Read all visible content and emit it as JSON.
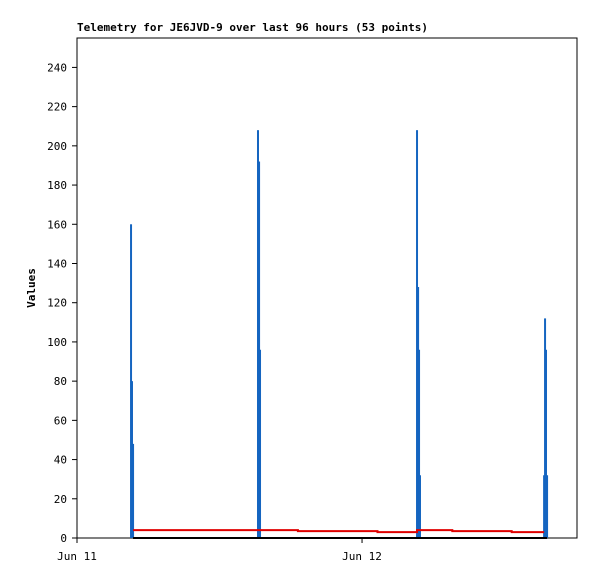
{
  "chart_data": {
    "type": "combo",
    "title": "Telemetry for JE6JVD-9 over last 96 hours (53 points)",
    "y_label": "Values",
    "xlim": [
      0,
      42.1
    ],
    "xticks": [
      {
        "value": 0,
        "label": "Jun 11"
      },
      {
        "value": 24,
        "label": "Jun 12"
      }
    ],
    "ylim": [
      0,
      255
    ],
    "yticks": [
      0,
      20,
      40,
      60,
      80,
      100,
      120,
      140,
      160,
      180,
      200,
      220,
      240
    ],
    "series": [
      {
        "type": "bar",
        "color": "#1565c0",
        "x": [
          4.55,
          4.63,
          4.72,
          15.24,
          15.33,
          15.41,
          28.63,
          28.72,
          28.8,
          28.88,
          39.33,
          39.41,
          39.49,
          39.58
        ],
        "values": [
          160,
          80,
          48,
          208,
          192,
          96,
          208,
          128,
          96,
          32,
          32,
          112,
          96,
          32
        ]
      },
      {
        "type": "line",
        "color": "#e00000",
        "x": [
          4.72,
          18.6,
          18.6,
          25.3,
          25.3,
          28.63,
          28.63,
          31.6,
          31.6,
          36.6,
          36.6,
          39.33
        ],
        "values": [
          4,
          4,
          3.5,
          3.5,
          3,
          3,
          4,
          4,
          3.5,
          3.5,
          3,
          3
        ]
      },
      {
        "type": "line",
        "color": "#000000",
        "x": [
          4.72,
          39.58
        ],
        "values": [
          0,
          0
        ]
      }
    ]
  }
}
